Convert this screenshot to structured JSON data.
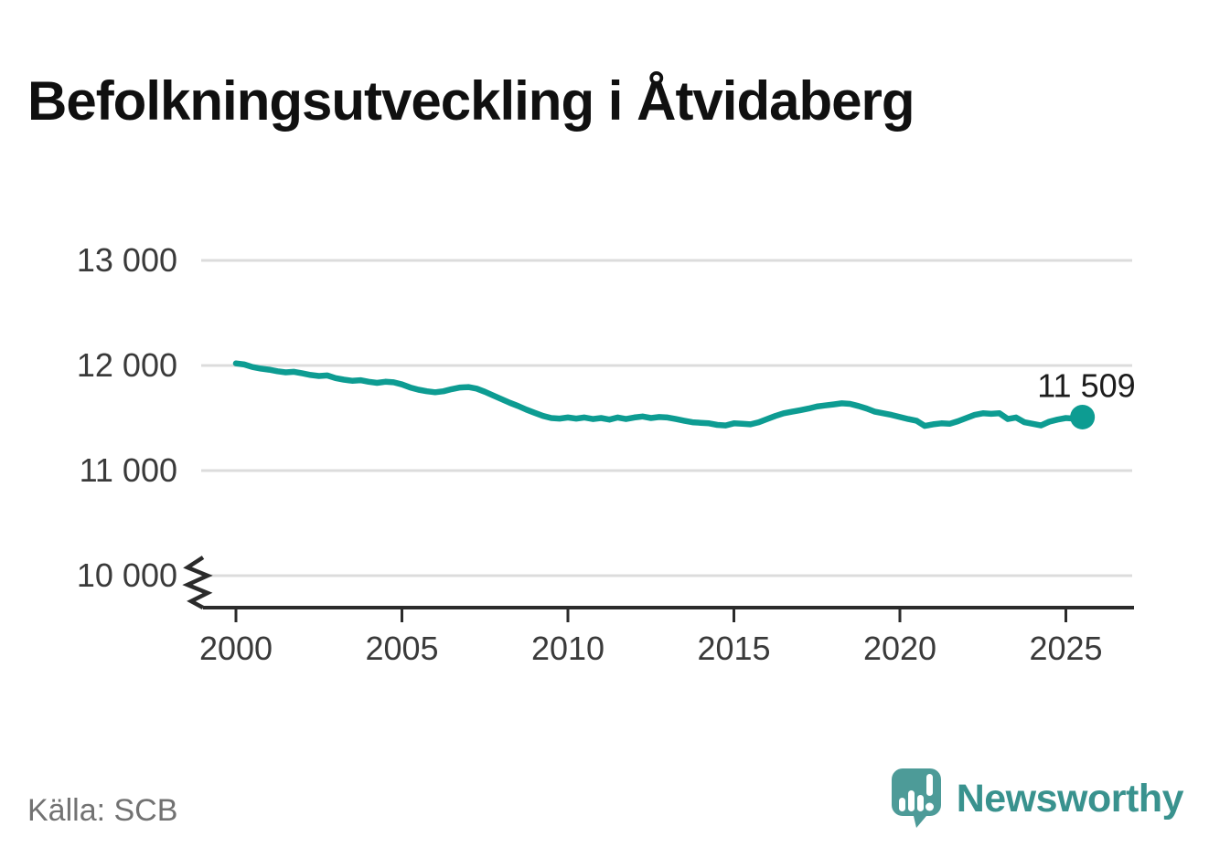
{
  "page": {
    "title": "Befolkningsutveckling i Åtvidaberg",
    "source_note": "Källa: SCB"
  },
  "branding": {
    "wordmark": "Newsworthy",
    "icon": "newsworthy-speech-bubble-bar-chart-icon",
    "icon_color": "#4d9b98",
    "wordmark_color": "#39928e"
  },
  "colors": {
    "line": "#0d9c92",
    "grid": "#dcdcdc",
    "axis": "#2b2b2b",
    "tick_label": "#3a3a3a",
    "title": "#101010",
    "source": "#727272",
    "end_label": "#1c1c1c"
  },
  "chart_data": {
    "type": "line",
    "title": "Befolkningsutveckling i Åtvidaberg",
    "xlabel": "",
    "ylabel": "",
    "grid": true,
    "legend": "none",
    "axis_break": true,
    "ylim": [
      9850,
      13250
    ],
    "x_start": 2000,
    "x_step_years": 0.25,
    "x_ticks": {
      "values": [
        2000,
        2005,
        2010,
        2015,
        2020,
        2025
      ],
      "labels": [
        "2000",
        "2005",
        "2010",
        "2015",
        "2020",
        "2025"
      ]
    },
    "y_ticks": {
      "values": [
        13000,
        12000,
        11000,
        10000
      ],
      "labels": [
        "13 000",
        "12 000",
        "11 000",
        "10 000"
      ]
    },
    "end_label": "11 509",
    "end_value": 11509,
    "series": [
      {
        "name": "Befolkning",
        "color": "#0d9c92",
        "values": [
          12020,
          12010,
          11985,
          11970,
          11960,
          11945,
          11935,
          11940,
          11925,
          11910,
          11900,
          11905,
          11880,
          11865,
          11855,
          11860,
          11845,
          11835,
          11845,
          11840,
          11820,
          11790,
          11770,
          11755,
          11745,
          11755,
          11775,
          11790,
          11795,
          11780,
          11750,
          11715,
          11680,
          11645,
          11615,
          11580,
          11550,
          11520,
          11500,
          11495,
          11505,
          11495,
          11505,
          11490,
          11500,
          11485,
          11505,
          11490,
          11505,
          11515,
          11500,
          11510,
          11505,
          11490,
          11475,
          11460,
          11455,
          11450,
          11435,
          11430,
          11450,
          11445,
          11440,
          11460,
          11490,
          11520,
          11545,
          11560,
          11575,
          11590,
          11610,
          11620,
          11630,
          11640,
          11635,
          11615,
          11590,
          11560,
          11545,
          11530,
          11510,
          11490,
          11475,
          11425,
          11440,
          11450,
          11445,
          11470,
          11500,
          11530,
          11545,
          11540,
          11545,
          11490,
          11505,
          11460,
          11445,
          11430,
          11465,
          11485,
          11500,
          11495,
          11509
        ]
      }
    ]
  }
}
